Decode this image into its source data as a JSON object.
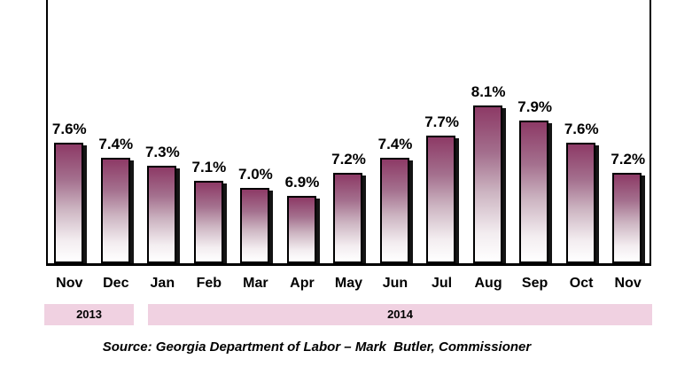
{
  "chart_data": {
    "type": "bar",
    "title": "",
    "xlabel": "",
    "ylabel": "",
    "categories": [
      "Nov",
      "Dec",
      "Jan",
      "Feb",
      "Mar",
      "Apr",
      "May",
      "Jun",
      "Jul",
      "Aug",
      "Sep",
      "Oct",
      "Nov"
    ],
    "values": [
      7.6,
      7.4,
      7.3,
      7.1,
      7.0,
      6.9,
      7.2,
      7.4,
      7.7,
      8.1,
      7.9,
      7.6,
      7.2
    ],
    "value_label_suffix": "%",
    "ylim": [
      6.0,
      9.5
    ],
    "y_axis_visible": false,
    "grid": false,
    "legend_position": "none",
    "year_bands": [
      {
        "label": "2013",
        "start_index": 0,
        "end_index": 1
      },
      {
        "label": "2014",
        "start_index": 2,
        "end_index": 12
      }
    ]
  },
  "source_note": "Source: Georgia Department of Labor – Mark  Butler, Commissioner",
  "colors": {
    "background": "#ffffff",
    "bar_top": "#8d3a66",
    "bar_bottom": "#ffffff",
    "bar_border": "#000000",
    "bar_shadow": "#141414",
    "year_band_bg": "#f0d1e1",
    "axis": "#000000",
    "text": "#000000"
  }
}
